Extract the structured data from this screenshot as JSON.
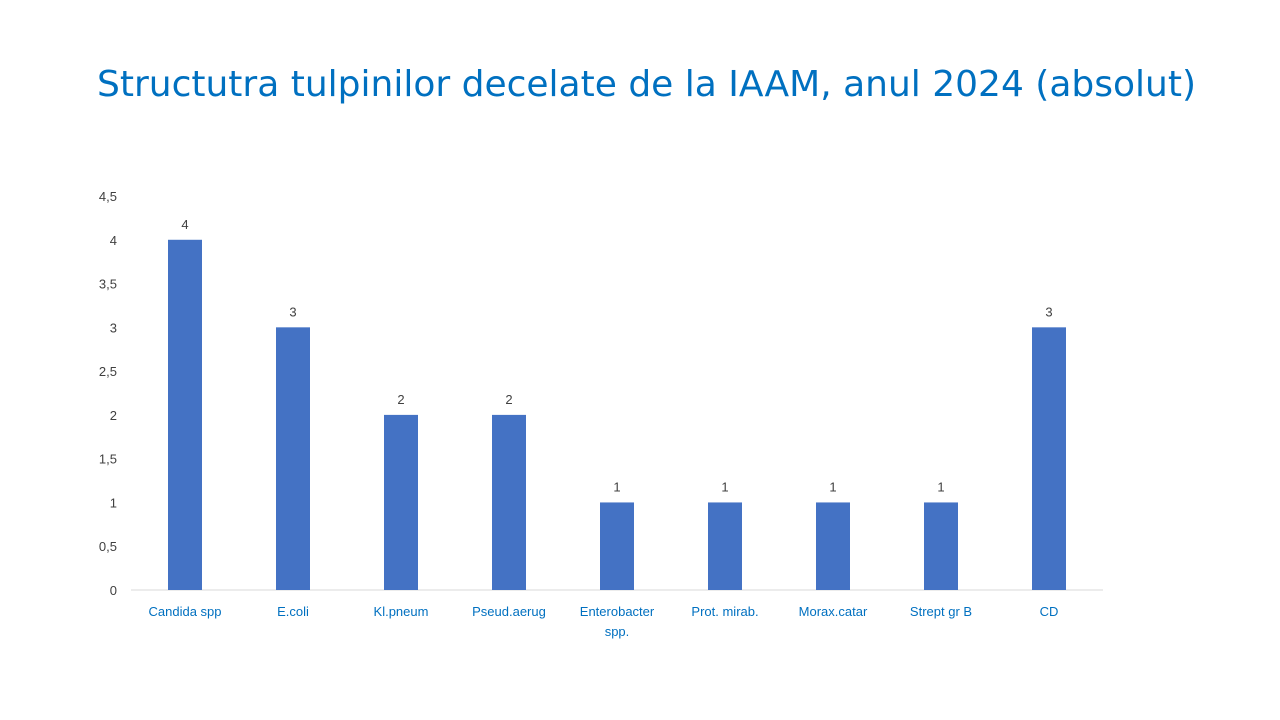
{
  "slide": {
    "title": "Structutra tulpinilor decelate de la IAAM, anul 2024 (absolut)"
  },
  "colors": {
    "title": "#0070c0",
    "bar": "#4472c4",
    "axis_line": "#d9d9d9",
    "y_tick_text": "#404040",
    "x_tick_text": "#0070c0",
    "data_label_text": "#404040"
  },
  "chart_data": {
    "type": "bar",
    "categories": [
      "Candida spp",
      "E.coli",
      "Kl.pneum",
      "Pseud.aerug",
      "Enterobacter spp.",
      "Prot. mirab.",
      "Morax.catar",
      "Strept gr B",
      "CD"
    ],
    "series": [
      {
        "values": [
          4,
          3,
          2,
          2,
          1,
          1,
          1,
          1,
          3
        ]
      }
    ],
    "title": "",
    "xlabel": "",
    "ylabel": "",
    "ylim": [
      0,
      4.5
    ],
    "yticks": [
      "0",
      "0,5",
      "1",
      "1,5",
      "2",
      "2,5",
      "3",
      "3,5",
      "4",
      "4,5"
    ],
    "data_labels": true,
    "grid": false,
    "legend": "none"
  }
}
